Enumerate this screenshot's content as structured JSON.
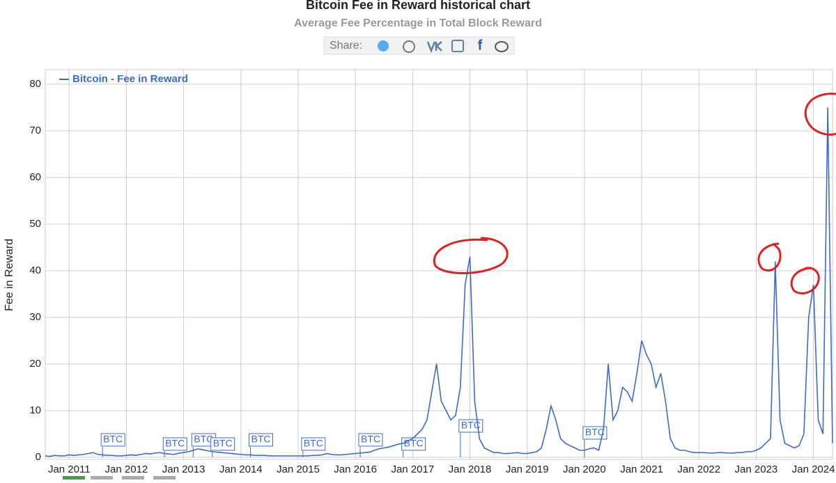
{
  "chart_data": {
    "type": "line",
    "title": "Bitcoin Fee in Reward historical chart",
    "subtitle": "Average Fee Percentage in Total Block Reward",
    "share_label": "Share:",
    "y_label": "Fee in Reward",
    "legend": "top-left",
    "grid": true,
    "ylim": [
      0,
      80
    ],
    "yticks": [
      0,
      10,
      20,
      30,
      40,
      50,
      60,
      70,
      80
    ],
    "xlim": [
      "2010-08",
      "2024-05"
    ],
    "xticks": [
      {
        "value": "2011-01",
        "label": "Jan 2011"
      },
      {
        "value": "2012-01",
        "label": "Jan 2012"
      },
      {
        "value": "2013-01",
        "label": "Jan 2013"
      },
      {
        "value": "2014-01",
        "label": "Jan 2014"
      },
      {
        "value": "2015-01",
        "label": "Jan 2015"
      },
      {
        "value": "2016-01",
        "label": "Jan 2016"
      },
      {
        "value": "2017-01",
        "label": "Jan 2017"
      },
      {
        "value": "2018-01",
        "label": "Jan 2018"
      },
      {
        "value": "2019-01",
        "label": "Jan 2019"
      },
      {
        "value": "2020-01",
        "label": "Jan 2020"
      },
      {
        "value": "2021-01",
        "label": "Jan 2021"
      },
      {
        "value": "2022-01",
        "label": "Jan 2022"
      },
      {
        "value": "2023-01",
        "label": "Jan 2023"
      },
      {
        "value": "2024-01",
        "label": "Jan 2024"
      }
    ],
    "x": [
      "2010-08",
      "2010-09",
      "2010-10",
      "2010-11",
      "2010-12",
      "2011-01",
      "2011-02",
      "2011-03",
      "2011-04",
      "2011-05",
      "2011-06",
      "2011-07",
      "2011-08",
      "2011-09",
      "2011-10",
      "2011-11",
      "2011-12",
      "2012-01",
      "2012-02",
      "2012-03",
      "2012-04",
      "2012-05",
      "2012-06",
      "2012-07",
      "2012-08",
      "2012-09",
      "2012-10",
      "2012-11",
      "2012-12",
      "2013-01",
      "2013-02",
      "2013-03",
      "2013-04",
      "2013-05",
      "2013-06",
      "2013-07",
      "2013-08",
      "2013-09",
      "2013-10",
      "2013-11",
      "2013-12",
      "2014-01",
      "2014-02",
      "2014-03",
      "2014-04",
      "2014-05",
      "2014-06",
      "2014-07",
      "2014-08",
      "2014-09",
      "2014-10",
      "2014-11",
      "2014-12",
      "2015-01",
      "2015-02",
      "2015-03",
      "2015-04",
      "2015-05",
      "2015-06",
      "2015-07",
      "2015-08",
      "2015-09",
      "2015-10",
      "2015-11",
      "2015-12",
      "2016-01",
      "2016-02",
      "2016-03",
      "2016-04",
      "2016-05",
      "2016-06",
      "2016-07",
      "2016-08",
      "2016-09",
      "2016-10",
      "2016-11",
      "2016-12",
      "2017-01",
      "2017-02",
      "2017-03",
      "2017-04",
      "2017-05",
      "2017-06",
      "2017-07",
      "2017-08",
      "2017-09",
      "2017-10",
      "2017-11",
      "2017-12",
      "2018-01",
      "2018-02",
      "2018-03",
      "2018-04",
      "2018-05",
      "2018-06",
      "2018-07",
      "2018-08",
      "2018-09",
      "2018-10",
      "2018-11",
      "2018-12",
      "2019-01",
      "2019-02",
      "2019-03",
      "2019-04",
      "2019-05",
      "2019-06",
      "2019-07",
      "2019-08",
      "2019-09",
      "2019-10",
      "2019-11",
      "2019-12",
      "2020-01",
      "2020-02",
      "2020-03",
      "2020-04",
      "2020-05",
      "2020-06",
      "2020-07",
      "2020-08",
      "2020-09",
      "2020-10",
      "2020-11",
      "2020-12",
      "2021-01",
      "2021-02",
      "2021-03",
      "2021-04",
      "2021-05",
      "2021-06",
      "2021-07",
      "2021-08",
      "2021-09",
      "2021-10",
      "2021-11",
      "2021-12",
      "2022-01",
      "2022-02",
      "2022-03",
      "2022-04",
      "2022-05",
      "2022-06",
      "2022-07",
      "2022-08",
      "2022-09",
      "2022-10",
      "2022-11",
      "2022-12",
      "2023-01",
      "2023-02",
      "2023-03",
      "2023-04",
      "2023-05",
      "2023-06",
      "2023-07",
      "2023-08",
      "2023-09",
      "2023-10",
      "2023-11",
      "2023-12",
      "2024-01",
      "2024-02",
      "2024-03",
      "2024-04",
      "2024-05"
    ],
    "series": [
      {
        "name": "Bitcoin - Fee in Reward",
        "color": "#3a6bc9",
        "values": [
          0.3,
          0.2,
          0.4,
          0.3,
          0.3,
          0.5,
          0.4,
          0.5,
          0.6,
          0.8,
          1,
          0.6,
          0.5,
          0.4,
          0.4,
          0.3,
          0.3,
          0.4,
          0.5,
          0.4,
          0.6,
          0.8,
          0.7,
          0.9,
          1,
          0.8,
          0.7,
          0.6,
          0.9,
          1,
          1.2,
          1.5,
          1.8,
          1.6,
          1.4,
          1.2,
          1.1,
          1,
          0.9,
          0.8,
          0.7,
          0.6,
          0.5,
          0.5,
          0.4,
          0.4,
          0.4,
          0.3,
          0.3,
          0.3,
          0.3,
          0.3,
          0.3,
          0.3,
          0.3,
          0.3,
          0.4,
          0.4,
          0.5,
          0.8,
          0.6,
          0.5,
          0.5,
          0.6,
          0.7,
          0.8,
          0.9,
          1,
          1.1,
          1.5,
          1.8,
          2,
          2.2,
          2.5,
          2.8,
          3,
          3.5,
          4,
          5,
          6,
          8,
          14,
          20,
          12,
          10,
          8,
          9,
          15,
          37,
          43,
          12,
          4,
          2,
          1.5,
          1,
          1,
          0.8,
          0.8,
          0.9,
          1,
          0.8,
          0.8,
          1,
          1.2,
          2,
          6,
          11,
          8,
          4,
          3,
          2.5,
          2,
          1.5,
          1.5,
          1.8,
          2,
          1.5,
          6,
          20,
          8,
          10,
          15,
          14,
          12,
          18,
          25,
          22,
          20,
          15,
          18,
          12,
          4,
          2,
          1.5,
          1.5,
          1.2,
          1,
          1,
          1,
          0.9,
          0.9,
          1,
          1,
          0.9,
          0.9,
          1,
          1,
          1.2,
          1.2,
          1.5,
          2,
          3,
          4,
          42,
          8,
          3,
          2.5,
          2,
          2.5,
          5,
          30,
          37,
          8,
          5,
          75,
          3
        ]
      }
    ],
    "annotations": [
      {
        "x": "2011-08",
        "text": "BTC"
      },
      {
        "x": "2012-09",
        "text": "BTC"
      },
      {
        "x": "2013-03",
        "text": "BTC"
      },
      {
        "x": "2013-07",
        "text": "BTC"
      },
      {
        "x": "2014-03",
        "text": "BTC"
      },
      {
        "x": "2015-02",
        "text": "BTC"
      },
      {
        "x": "2016-02",
        "text": "BTC"
      },
      {
        "x": "2016-11",
        "text": "BTC"
      },
      {
        "x": "2017-11",
        "text": "BTC"
      },
      {
        "x": "2020-01",
        "text": "BTC"
      }
    ]
  }
}
